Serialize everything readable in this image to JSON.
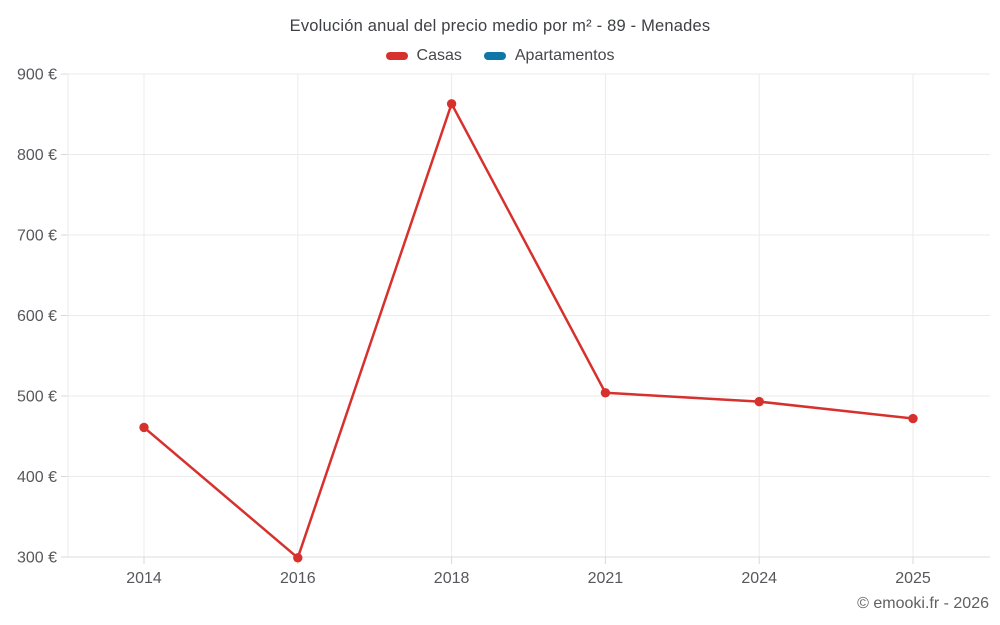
{
  "footer": "© emooki.fr - 2026",
  "chart_data": {
    "type": "line",
    "title": "Evolución anual del precio medio por m² - 89 - Menades",
    "xlabel": "",
    "ylabel": "",
    "categories": [
      "2014",
      "2016",
      "2018",
      "2021",
      "2024",
      "2025"
    ],
    "series": [
      {
        "name": "Casas",
        "color": "#d7312e",
        "values": [
          461,
          299,
          863,
          504,
          493,
          472
        ]
      },
      {
        "name": "Apartamentos",
        "color": "#0f76a8",
        "values": []
      }
    ],
    "ylim": [
      300,
      900
    ],
    "yticks": [
      300,
      400,
      500,
      600,
      700,
      800,
      900
    ],
    "ytick_suffix": " €",
    "grid": true,
    "legend_position": "top",
    "colors": {
      "grid_line": "#ebebeb",
      "axis_line": "#dcdcdc",
      "tick_mark": "#d9d9d9",
      "tick_text": "#57585c",
      "title_text": "#3f4045",
      "footer_text": "#606060"
    }
  }
}
